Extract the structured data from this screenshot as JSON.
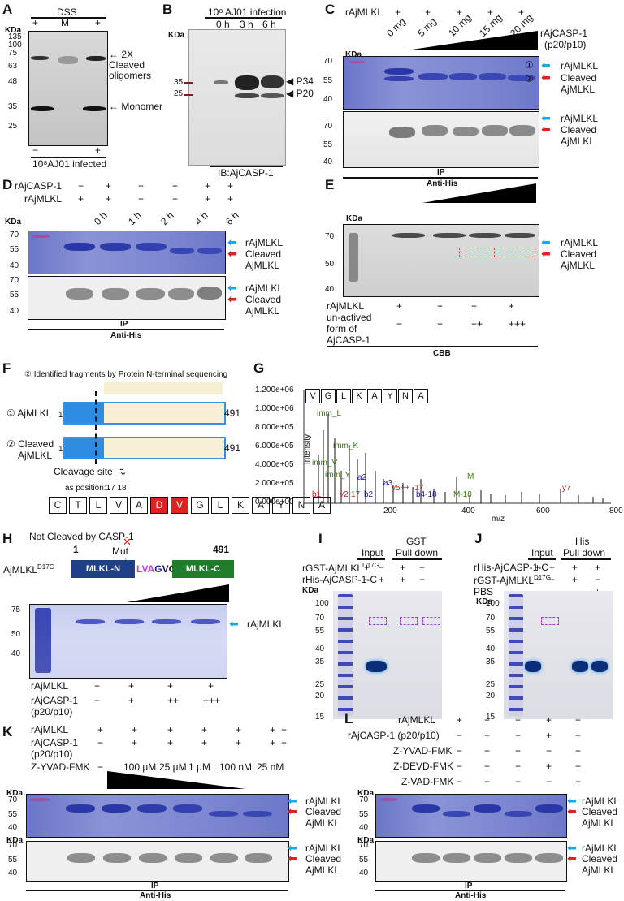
{
  "panels": {
    "A": {
      "letter": "A",
      "header": "DSS",
      "lanes": [
        "+",
        "M",
        "+"
      ],
      "kda": "KDa",
      "markers": [
        "135",
        "100",
        "75",
        "63",
        "48",
        "35",
        "25"
      ],
      "labels": [
        "2X",
        "Cleaved",
        "oligomers",
        "Monomer"
      ],
      "bottom_signs": [
        "−",
        "+"
      ],
      "footer": "10⁸AJ01 infected"
    },
    "B": {
      "letter": "B",
      "header": "10⁸ AJ01 infection",
      "times": [
        "0 h",
        "3 h",
        "6 h"
      ],
      "kda": "KDa",
      "markers": [
        "35",
        "25"
      ],
      "labels": [
        "P34",
        "P20"
      ],
      "footer": "IB:AjCASP-1"
    },
    "C": {
      "letter": "C",
      "row1": "rAjMLKL",
      "signs": [
        "+",
        "+",
        "+",
        "+",
        "+"
      ],
      "doses": [
        "0 mg",
        "5 mg",
        "10 mg",
        "15 mg",
        "20 mg"
      ],
      "enzyme": "rAjCASP-1",
      "enzyme2": "(p20/p10)",
      "kda": "KDa",
      "markers_top": [
        "70",
        "55",
        "40"
      ],
      "markers_bot": [
        "70",
        "55",
        "40"
      ],
      "circ1": "①",
      "circ2": "②",
      "lab1": "rAjMLKL",
      "lab2": "Cleaved",
      "lab3": "AjMLKL",
      "ip": "IP",
      "ab": "Anti-His"
    },
    "D": {
      "letter": "D",
      "row1": "rAjCASP-1",
      "row1_signs": [
        "−",
        "+",
        "+",
        "+",
        "+",
        "+"
      ],
      "row2": "rAjMLKL",
      "row2_signs": [
        "+",
        "+",
        "+",
        "+",
        "+",
        "+"
      ],
      "times": [
        "0 h",
        "1 h",
        "2 h",
        "4 h",
        "6 h"
      ],
      "kda": "KDa",
      "markers": [
        "70",
        "55",
        "40"
      ],
      "lab1": "rAjMLKL",
      "lab2": "Cleaved",
      "lab3": "AjMLKL",
      "ip": "IP",
      "ab": "Anti-His"
    },
    "E": {
      "letter": "E",
      "kda": "KDa",
      "markers": [
        "70",
        "50",
        "40"
      ],
      "lab1": "rAjMLKL",
      "lab2": "Cleaved",
      "lab3": "AjMLKL",
      "row1": "rAjMLKL",
      "row2": "un-actived",
      "row3": "form of",
      "row4": "AjCASP-1",
      "row1_signs": [
        "+",
        "+",
        "+",
        "+"
      ],
      "row2_signs": [
        "−",
        "+",
        "++",
        "+++"
      ],
      "footer": "CBB"
    },
    "F": {
      "letter": "F",
      "legend": "② Identified fragments by Protein N-terminal sequencing",
      "item1": "① AjMLKL",
      "item2a": "② Cleaved",
      "item2b": "AjMLKL",
      "start": "1",
      "end": "491",
      "site": "Cleavage site",
      "position": "as position:17 18",
      "sequence": [
        "C",
        "T",
        "L",
        "V",
        "A",
        "D",
        "V",
        "G",
        "L",
        "K",
        "A",
        "Y",
        "N",
        "A"
      ]
    },
    "G": {
      "letter": "G",
      "peptide": [
        "V",
        "G",
        "L",
        "K",
        "A",
        "Y",
        "N",
        "A"
      ],
      "yticks": [
        "1.200e+06",
        "1.000e+06",
        "8.000e+05",
        "6.000e+05",
        "4.000e+05",
        "2.000e+05",
        "0.000e+00"
      ],
      "xticks": [
        "200",
        "400",
        "600",
        "800"
      ],
      "ylabel": "Intensity",
      "xlabel": "m/z",
      "ions": [
        "imm_L",
        "imm_K",
        "imm_V",
        "imm_Y",
        "a2",
        "a3",
        "b4-18",
        "M",
        "M-18",
        "y5++ -17",
        "y7",
        "b1",
        "b2",
        "y2-17"
      ]
    },
    "H": {
      "letter": "H",
      "title": "Not Cleaved by CASP-1",
      "start": "1",
      "end": "491",
      "mut": "Mut",
      "name": "AjMLKL",
      "sup": "D17G",
      "domainN": "MLKL-N",
      "domainC": "MLKL-C",
      "seq_a": "LVA",
      "seq_b": "G",
      "seq_c": "VGL",
      "markers": [
        "75",
        "50",
        "40"
      ],
      "lab": "rAjMLKL",
      "row1": "rAjMLKL",
      "row1_signs": [
        "+",
        "+",
        "+",
        "+"
      ],
      "row2": "rAjCASP-1",
      "row2b": "(p20/p10)",
      "row2_signs": [
        "−",
        "+",
        "++",
        "+++"
      ]
    },
    "I": {
      "letter": "I",
      "hdr1": "Input",
      "hdr2": "GST",
      "hdr3": "Pull down",
      "row1": "rGST-AjMLKL",
      "row1sup": "D17G",
      "row1_signs": [
        "+",
        "−",
        "+",
        "+"
      ],
      "row2": "rHis-AjCASP-1-C",
      "row2_signs": [
        "−",
        "+",
        "+",
        "−"
      ],
      "kda": "KDa",
      "markers": [
        "100",
        "70",
        "55",
        "40",
        "35",
        "25",
        "20",
        "15"
      ]
    },
    "J": {
      "letter": "J",
      "hdr1": "Input",
      "hdr2": "His",
      "hdr3": "Pull down",
      "row1": "rHis-AjCASP-1-C",
      "row1_signs": [
        "+",
        "−",
        "+",
        "+"
      ],
      "row2": "rGST-AjMLKL",
      "row2sup": "D17G",
      "row2_signs": [
        "−",
        "+",
        "+",
        "−"
      ],
      "row3": "PBS",
      "row3_signs": [
        "−",
        "−",
        "−",
        "+"
      ],
      "kda": "KDa",
      "markers": [
        "100",
        "70",
        "55",
        "40",
        "35",
        "25",
        "20",
        "15"
      ]
    },
    "K": {
      "letter": "K",
      "row1": "rAjMLKL",
      "row1_signs": [
        "+",
        "+",
        "+",
        "+",
        "+",
        "+",
        "+"
      ],
      "row2": "rAjCASP-1",
      "row2b": "(p20/p10)",
      "row2_signs": [
        "−",
        "+",
        "+",
        "+",
        "+",
        "+",
        "+"
      ],
      "row3": "Z-YVAD-FMK",
      "conc": [
        "100 μM",
        "25 μM",
        "1 μM",
        "100 nM",
        "25 nM"
      ],
      "row3_signs": [
        "−"
      ],
      "kda": "KDa",
      "markers": [
        "70",
        "55",
        "40"
      ],
      "lab1": "rAjMLKL",
      "lab2": "Cleaved",
      "lab3": "AjMLKL",
      "ip": "IP",
      "ab": "Anti-His"
    },
    "L": {
      "letter": "L",
      "row1": "rAjMLKL",
      "row1_signs": [
        "+",
        "+",
        "+",
        "+",
        "+"
      ],
      "row2": "rAjCASP-1 (p20/p10)",
      "row2_signs": [
        "−",
        "+",
        "+",
        "+",
        "+"
      ],
      "row3": "Z-YVAD-FMK",
      "row3_signs": [
        "−",
        "−",
        "+",
        "−",
        "−"
      ],
      "row4": "Z-DEVD-FMK",
      "row4_signs": [
        "−",
        "−",
        "−",
        "+",
        "−"
      ],
      "row5": "Z-VAD-FMK",
      "row5_signs": [
        "−",
        "−",
        "−",
        "−",
        "+"
      ],
      "kda": "KDa",
      "markers": [
        "70",
        "55",
        "40"
      ],
      "lab1": "rAjMLKL",
      "lab2": "Cleaved",
      "lab3": "AjMLKL",
      "ip": "IP",
      "ab": "Anti-His"
    }
  }
}
